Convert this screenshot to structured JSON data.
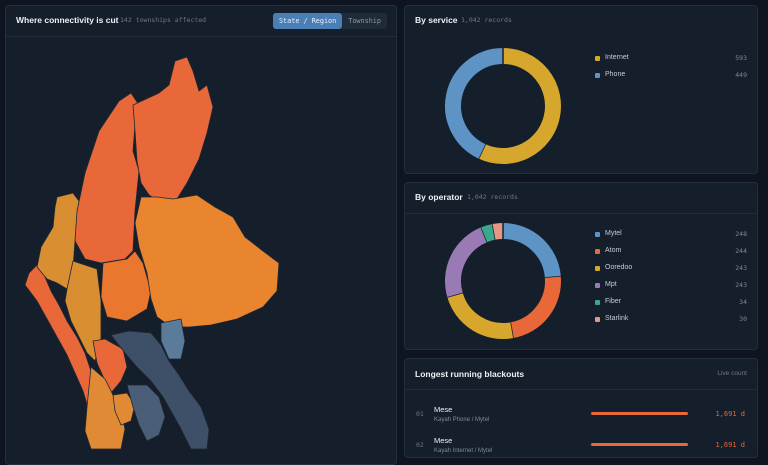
{
  "map_panel": {
    "title": "Where connectivity is cut",
    "subtitle": "142 townships affected",
    "toggle": [
      "State / Region",
      "Township"
    ]
  },
  "service_panel": {
    "title": "By service",
    "meta": "1,042 records",
    "items": [
      {
        "label": "Internet",
        "value": "593",
        "color": "#d6a72c"
      },
      {
        "label": "Phone",
        "value": "449",
        "color": "#5e93c6"
      }
    ]
  },
  "operator_panel": {
    "title": "By operator",
    "meta": "1,042 records",
    "items": [
      {
        "label": "Mytel",
        "value": "248",
        "color": "#5e93c6"
      },
      {
        "label": "Atom",
        "value": "244",
        "color": "#e8683a"
      },
      {
        "label": "Ooredoo",
        "value": "243",
        "color": "#d6a72c"
      },
      {
        "label": "Mpt",
        "value": "243",
        "color": "#9a7ab5"
      },
      {
        "label": "Fiber",
        "value": "34",
        "color": "#3aa88c"
      },
      {
        "label": "Starlink",
        "value": "30",
        "color": "#e59783"
      }
    ]
  },
  "blackouts_panel": {
    "title": "Longest running blackouts",
    "meta": "Live count",
    "rows": [
      {
        "rank": "01",
        "name": "Mese",
        "sub": "Kayah  Phone / Mytel",
        "duration": "1,691 d"
      },
      {
        "rank": "02",
        "name": "Mese",
        "sub": "Kayah  Internet / Mytel",
        "duration": "1,691 d"
      }
    ]
  }
}
